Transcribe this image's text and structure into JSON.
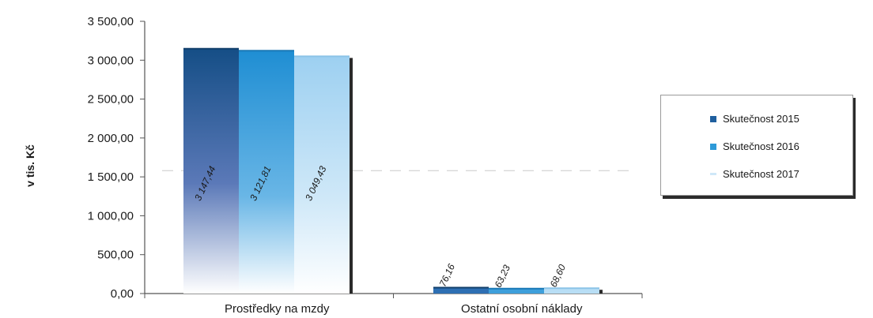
{
  "chart_data": {
    "type": "bar",
    "ylabel": "v tis. Kč",
    "ylim": [
      0,
      3500
    ],
    "yticks": [
      "0,00",
      "500,00",
      "1 000,00",
      "1 500,00",
      "2 000,00",
      "2 500,00",
      "3 000,00",
      "3 500,00"
    ],
    "ytick_values": [
      0,
      500,
      1000,
      1500,
      2000,
      2500,
      3000,
      3500
    ],
    "categories": [
      "Prostředky na mzdy",
      "Ostatní osobní náklady"
    ],
    "series": [
      {
        "name": "Skutečnost 2015",
        "values": [
          3147.44,
          76.16
        ],
        "labels": [
          "3 147,44",
          "76,16"
        ]
      },
      {
        "name": "Skutečnost 2016",
        "values": [
          3121.81,
          63.23
        ],
        "labels": [
          "3 121,81",
          "63,23"
        ]
      },
      {
        "name": "Skutečnost 2017",
        "values": [
          3049.43,
          68.6
        ],
        "labels": [
          "3 049,43",
          "68,60"
        ]
      }
    ],
    "colors": [
      "#1f5f9e",
      "#2e9ad8",
      "#9fd2f0"
    ],
    "grid": false,
    "legend_position": "right"
  }
}
